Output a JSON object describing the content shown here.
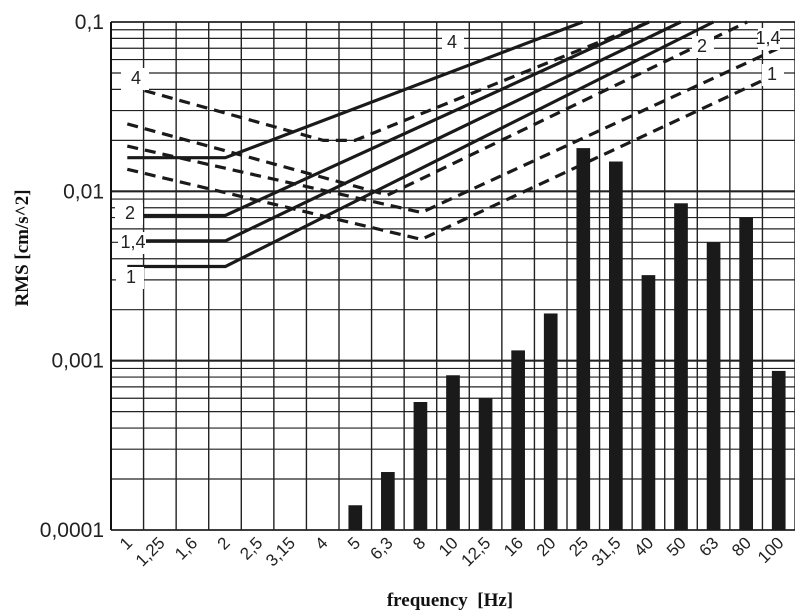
{
  "chart_data": {
    "type": "bar",
    "title": "",
    "xlabel": "frequency  [Hz]",
    "ylabel": "RMS [cm/s^2]",
    "y_scale": "log",
    "ylim": [
      0.0001,
      0.1
    ],
    "grid": true,
    "y_tick_labels": [
      "0,1",
      "0,01",
      "0,001",
      "0,0001"
    ],
    "categories": [
      "1",
      "1,25",
      "1,6",
      "2",
      "2,5",
      "3,15",
      "4",
      "5",
      "6,3",
      "8",
      "10",
      "12,5",
      "16",
      "20",
      "25",
      "31,5",
      "40",
      "50",
      "63",
      "80",
      "100"
    ],
    "values": [
      null,
      null,
      null,
      null,
      null,
      null,
      null,
      0.00014,
      0.00022,
      0.00057,
      0.00082,
      0.0006,
      0.00115,
      0.0019,
      0.018,
      0.015,
      0.0032,
      0.0085,
      0.005,
      0.007,
      0.00087
    ],
    "reference_curves": [
      {
        "label": "1",
        "style": "solid",
        "points": [
          [
            1,
            0.0036
          ],
          [
            2,
            0.0036
          ],
          [
            63,
            0.1
          ]
        ]
      },
      {
        "label": "1,4",
        "style": "solid",
        "points": [
          [
            1,
            0.0051
          ],
          [
            2,
            0.0051
          ],
          [
            50,
            0.1
          ]
        ]
      },
      {
        "label": "2",
        "style": "solid",
        "points": [
          [
            1,
            0.0072
          ],
          [
            2,
            0.0072
          ],
          [
            40,
            0.1
          ]
        ]
      },
      {
        "label": "4",
        "style": "solid",
        "points": [
          [
            1,
            0.0158
          ],
          [
            2,
            0.0158
          ],
          [
            25,
            0.1
          ]
        ]
      },
      {
        "label": "1",
        "style": "dashed",
        "points": [
          [
            1,
            0.0135
          ],
          [
            8,
            0.0052
          ],
          [
            100,
            0.05
          ]
        ]
      },
      {
        "label": "1,4",
        "style": "dashed",
        "points": [
          [
            1,
            0.0185
          ],
          [
            8,
            0.0075
          ],
          [
            100,
            0.07
          ]
        ]
      },
      {
        "label": "2",
        "style": "dashed",
        "points": [
          [
            1,
            0.025
          ],
          [
            6.3,
            0.0095
          ],
          [
            80,
            0.1
          ]
        ]
      },
      {
        "label": "4",
        "style": "dashed",
        "points": [
          [
            1,
            0.042
          ],
          [
            4,
            0.02
          ],
          [
            5,
            0.02
          ],
          [
            40,
            0.1
          ]
        ]
      }
    ],
    "curve_labels_right": [
      "4",
      "2",
      "1,4",
      "1"
    ],
    "curve_labels_left": [
      "4",
      "2",
      "1,4",
      "1"
    ]
  }
}
